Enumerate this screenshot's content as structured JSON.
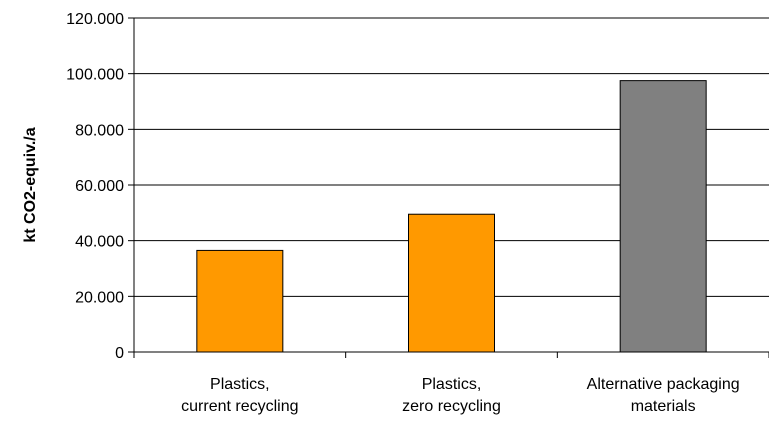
{
  "chart_data": {
    "type": "bar",
    "categories": [
      [
        "Plastics,",
        "current recycling"
      ],
      [
        "Plastics,",
        "zero recycling"
      ],
      [
        "Alternative packaging",
        "materials"
      ]
    ],
    "values": [
      36500,
      49500,
      97500
    ],
    "bar_colors": [
      "#FF9900",
      "#FF9900",
      "#808080"
    ],
    "ylabel": "kt CO2-equiv./a",
    "ylim": [
      0,
      120000
    ],
    "yticks": [
      0,
      20000,
      40000,
      60000,
      80000,
      100000,
      120000
    ],
    "ytick_labels": [
      "0",
      "20.000",
      "40.000",
      "60.000",
      "80.000",
      "100.000",
      "120.000"
    ],
    "grid": true
  }
}
